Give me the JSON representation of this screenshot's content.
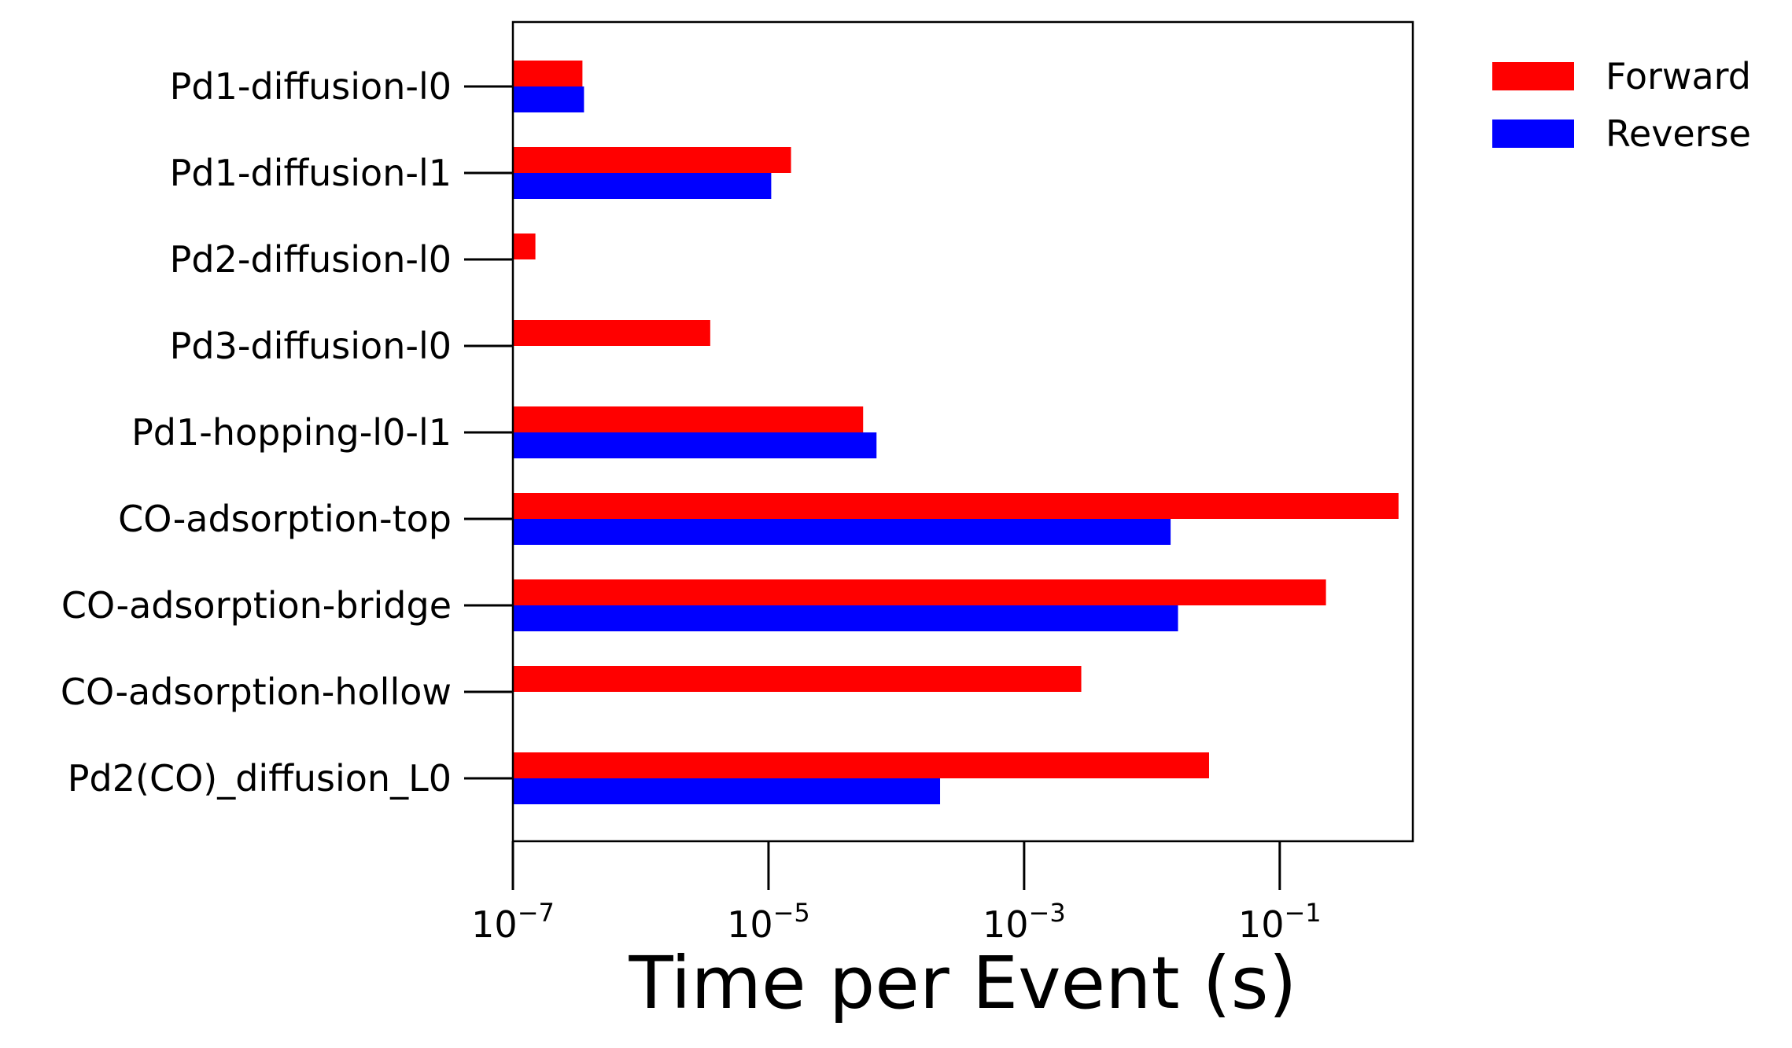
{
  "chart_data": {
    "type": "bar",
    "orientation": "horizontal",
    "categories": [
      "Pd1-diffusion-l0",
      "Pd1-diffusion-l1",
      "Pd2-diffusion-l0",
      "Pd3-diffusion-l0",
      "Pd1-hopping-l0-l1",
      "CO-adsorption-top",
      "CO-adsorption-bridge",
      "CO-adsorption-hollow",
      "Pd2(CO)_diffusion_L0"
    ],
    "series": [
      {
        "name": "Forward",
        "color": "#ff0000",
        "values": [
          3.5e-07,
          1.5e-05,
          1.5e-07,
          3.5e-06,
          5.5e-05,
          0.85,
          0.23,
          0.0028,
          0.028
        ]
      },
      {
        "name": "Reverse",
        "color": "#0000ff",
        "values": [
          3.6e-07,
          1.05e-05,
          null,
          null,
          7e-05,
          0.014,
          0.016,
          null,
          0.00022
        ]
      }
    ],
    "xlabel": "Time per Event (s)",
    "ylabel": "",
    "xscale": "log",
    "xlim": [
      1e-07,
      1.1
    ],
    "xticks": [
      {
        "base": "10",
        "exp": "−7"
      },
      {
        "base": "10",
        "exp": "−5"
      },
      {
        "base": "10",
        "exp": "−3"
      },
      {
        "base": "10",
        "exp": "−1"
      }
    ],
    "legend_position": "outside-top-right",
    "grid": false
  }
}
